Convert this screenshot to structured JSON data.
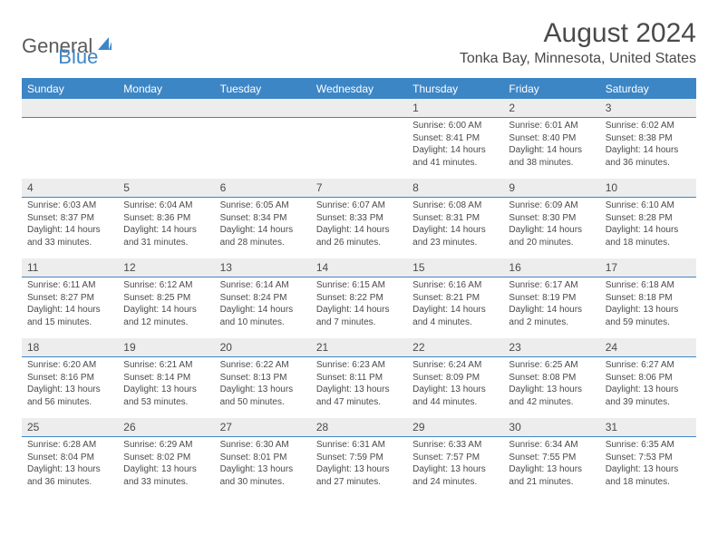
{
  "logo": {
    "part1": "General",
    "part2": "Blue"
  },
  "title": "August 2024",
  "location": "Tonka Bay, Minnesota, United States",
  "colors": {
    "accent": "#3d86c6",
    "headerText": "#4a4a4a",
    "dayBg": "#ededed",
    "bodyText": "#4a4a4a",
    "page": "#ffffff"
  },
  "weekdays": [
    "Sunday",
    "Monday",
    "Tuesday",
    "Wednesday",
    "Thursday",
    "Friday",
    "Saturday"
  ],
  "leadingBlanks": 4,
  "days": [
    {
      "n": "1",
      "sunrise": "6:00 AM",
      "sunset": "8:41 PM",
      "daylight": "14 hours and 41 minutes."
    },
    {
      "n": "2",
      "sunrise": "6:01 AM",
      "sunset": "8:40 PM",
      "daylight": "14 hours and 38 minutes."
    },
    {
      "n": "3",
      "sunrise": "6:02 AM",
      "sunset": "8:38 PM",
      "daylight": "14 hours and 36 minutes."
    },
    {
      "n": "4",
      "sunrise": "6:03 AM",
      "sunset": "8:37 PM",
      "daylight": "14 hours and 33 minutes."
    },
    {
      "n": "5",
      "sunrise": "6:04 AM",
      "sunset": "8:36 PM",
      "daylight": "14 hours and 31 minutes."
    },
    {
      "n": "6",
      "sunrise": "6:05 AM",
      "sunset": "8:34 PM",
      "daylight": "14 hours and 28 minutes."
    },
    {
      "n": "7",
      "sunrise": "6:07 AM",
      "sunset": "8:33 PM",
      "daylight": "14 hours and 26 minutes."
    },
    {
      "n": "8",
      "sunrise": "6:08 AM",
      "sunset": "8:31 PM",
      "daylight": "14 hours and 23 minutes."
    },
    {
      "n": "9",
      "sunrise": "6:09 AM",
      "sunset": "8:30 PM",
      "daylight": "14 hours and 20 minutes."
    },
    {
      "n": "10",
      "sunrise": "6:10 AM",
      "sunset": "8:28 PM",
      "daylight": "14 hours and 18 minutes."
    },
    {
      "n": "11",
      "sunrise": "6:11 AM",
      "sunset": "8:27 PM",
      "daylight": "14 hours and 15 minutes."
    },
    {
      "n": "12",
      "sunrise": "6:12 AM",
      "sunset": "8:25 PM",
      "daylight": "14 hours and 12 minutes."
    },
    {
      "n": "13",
      "sunrise": "6:14 AM",
      "sunset": "8:24 PM",
      "daylight": "14 hours and 10 minutes."
    },
    {
      "n": "14",
      "sunrise": "6:15 AM",
      "sunset": "8:22 PM",
      "daylight": "14 hours and 7 minutes."
    },
    {
      "n": "15",
      "sunrise": "6:16 AM",
      "sunset": "8:21 PM",
      "daylight": "14 hours and 4 minutes."
    },
    {
      "n": "16",
      "sunrise": "6:17 AM",
      "sunset": "8:19 PM",
      "daylight": "14 hours and 2 minutes."
    },
    {
      "n": "17",
      "sunrise": "6:18 AM",
      "sunset": "8:18 PM",
      "daylight": "13 hours and 59 minutes."
    },
    {
      "n": "18",
      "sunrise": "6:20 AM",
      "sunset": "8:16 PM",
      "daylight": "13 hours and 56 minutes."
    },
    {
      "n": "19",
      "sunrise": "6:21 AM",
      "sunset": "8:14 PM",
      "daylight": "13 hours and 53 minutes."
    },
    {
      "n": "20",
      "sunrise": "6:22 AM",
      "sunset": "8:13 PM",
      "daylight": "13 hours and 50 minutes."
    },
    {
      "n": "21",
      "sunrise": "6:23 AM",
      "sunset": "8:11 PM",
      "daylight": "13 hours and 47 minutes."
    },
    {
      "n": "22",
      "sunrise": "6:24 AM",
      "sunset": "8:09 PM",
      "daylight": "13 hours and 44 minutes."
    },
    {
      "n": "23",
      "sunrise": "6:25 AM",
      "sunset": "8:08 PM",
      "daylight": "13 hours and 42 minutes."
    },
    {
      "n": "24",
      "sunrise": "6:27 AM",
      "sunset": "8:06 PM",
      "daylight": "13 hours and 39 minutes."
    },
    {
      "n": "25",
      "sunrise": "6:28 AM",
      "sunset": "8:04 PM",
      "daylight": "13 hours and 36 minutes."
    },
    {
      "n": "26",
      "sunrise": "6:29 AM",
      "sunset": "8:02 PM",
      "daylight": "13 hours and 33 minutes."
    },
    {
      "n": "27",
      "sunrise": "6:30 AM",
      "sunset": "8:01 PM",
      "daylight": "13 hours and 30 minutes."
    },
    {
      "n": "28",
      "sunrise": "6:31 AM",
      "sunset": "7:59 PM",
      "daylight": "13 hours and 27 minutes."
    },
    {
      "n": "29",
      "sunrise": "6:33 AM",
      "sunset": "7:57 PM",
      "daylight": "13 hours and 24 minutes."
    },
    {
      "n": "30",
      "sunrise": "6:34 AM",
      "sunset": "7:55 PM",
      "daylight": "13 hours and 21 minutes."
    },
    {
      "n": "31",
      "sunrise": "6:35 AM",
      "sunset": "7:53 PM",
      "daylight": "13 hours and 18 minutes."
    }
  ],
  "labels": {
    "sunrise": "Sunrise:",
    "sunset": "Sunset:",
    "daylight": "Daylight:"
  }
}
